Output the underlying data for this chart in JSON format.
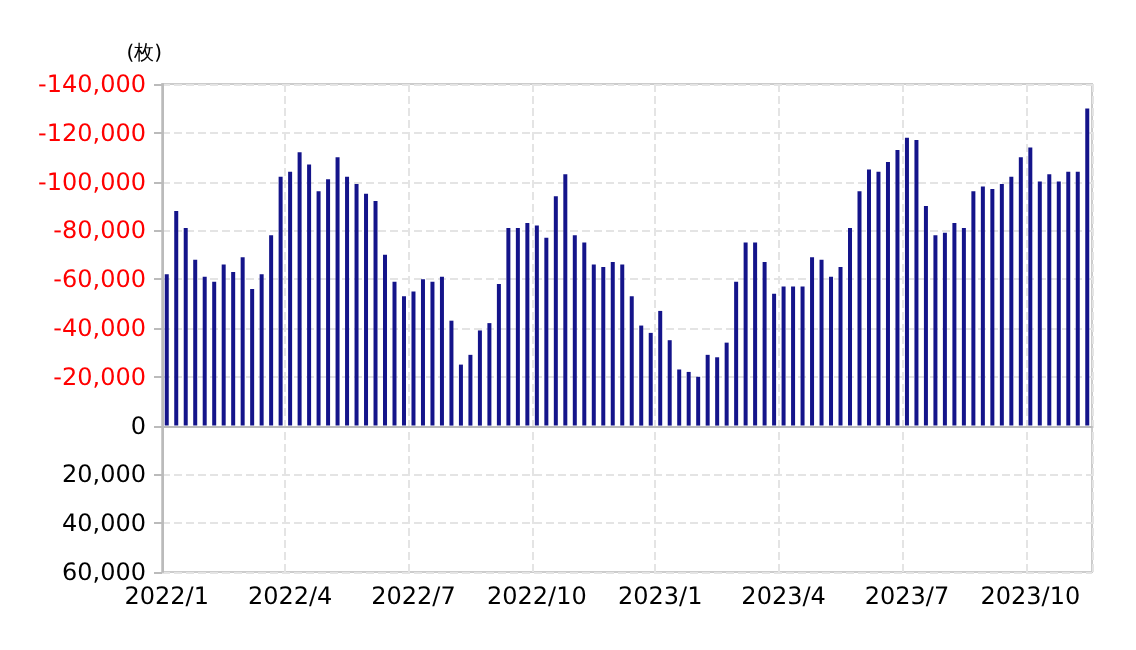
{
  "chart_data": {
    "type": "bar",
    "ylabel": "(枚)",
    "categories": [
      "2022/1",
      null,
      null,
      null,
      null,
      null,
      null,
      null,
      null,
      null,
      null,
      null,
      null,
      "2022/4",
      null,
      null,
      null,
      null,
      null,
      null,
      null,
      null,
      null,
      null,
      null,
      null,
      "2022/7",
      null,
      null,
      null,
      null,
      null,
      null,
      null,
      null,
      null,
      null,
      null,
      null,
      "2022/10",
      null,
      null,
      null,
      null,
      null,
      null,
      null,
      null,
      null,
      null,
      null,
      null,
      "2023/1",
      null,
      null,
      null,
      null,
      null,
      null,
      null,
      null,
      null,
      null,
      null,
      null,
      "2023/4",
      null,
      null,
      null,
      null,
      null,
      null,
      null,
      null,
      null,
      null,
      null,
      null,
      "2023/7",
      null,
      null,
      null,
      null,
      null,
      null,
      null,
      null,
      null,
      null,
      null,
      null,
      "2023/10",
      null,
      null,
      null,
      null,
      null,
      null
    ],
    "values": [
      -62000,
      -88000,
      -81000,
      -68000,
      -61000,
      -59000,
      -66000,
      -63000,
      -69000,
      -56000,
      -62000,
      -78000,
      -102000,
      -104000,
      -112000,
      -107000,
      -96000,
      -101000,
      -110000,
      -102000,
      -99000,
      -95000,
      -92000,
      -70000,
      -59000,
      -53000,
      -55000,
      -60000,
      -59000,
      -61000,
      -43000,
      -25000,
      -29000,
      -39000,
      -42000,
      -58000,
      -81000,
      -81000,
      -83000,
      -82000,
      -77000,
      -94000,
      -103000,
      -78000,
      -75000,
      -66000,
      -65000,
      -67000,
      -66000,
      -53000,
      -41000,
      -38000,
      -47000,
      -35000,
      -23000,
      -22000,
      -20000,
      -29000,
      -28000,
      -34000,
      -59000,
      -75000,
      -75000,
      -67000,
      -54000,
      -57000,
      -57000,
      -57000,
      -69000,
      -68000,
      -61000,
      -65000,
      -81000,
      -96000,
      -105000,
      -104000,
      -108000,
      -113000,
      -118000,
      -117000,
      -90000,
      -78000,
      -79000,
      -83000,
      -81000,
      -96000,
      -98000,
      -97000,
      -99000,
      -102000,
      -110000,
      -114000,
      -100000,
      -103000,
      -100000,
      -104000,
      -104000,
      -130000
    ],
    "color": "#14148a",
    "ylim": [
      60000,
      -140000
    ],
    "yticks": [
      {
        "value": 60000,
        "label": "60,000"
      },
      {
        "value": 40000,
        "label": "40,000"
      },
      {
        "value": 20000,
        "label": "20,000"
      },
      {
        "value": 0,
        "label": "0"
      },
      {
        "value": -20000,
        "label": "-20,000"
      },
      {
        "value": -40000,
        "label": "-40,000"
      },
      {
        "value": -60000,
        "label": "-60,000"
      },
      {
        "value": -80000,
        "label": "-80,000"
      },
      {
        "value": -100000,
        "label": "-100,000"
      },
      {
        "value": -120000,
        "label": "-120,000"
      },
      {
        "value": -140000,
        "label": "-140,000"
      }
    ],
    "grid": true
  }
}
